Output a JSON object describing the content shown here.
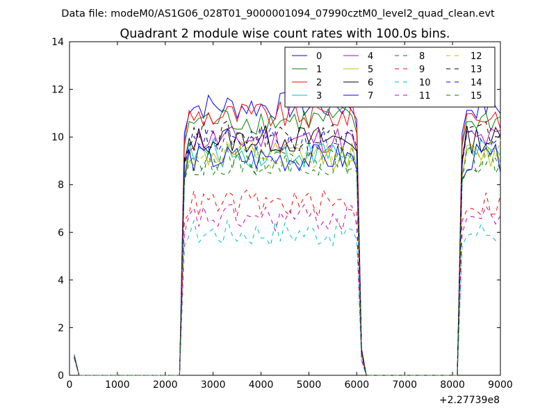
{
  "figure": {
    "suptitle": "Data file: modeM0/AS1G06_028T01_9000001094_07990cztM0_level2_quad_clean.evt",
    "x_offset_label": "+2.27739e8"
  },
  "chart_data": {
    "type": "line",
    "title": "Quadrant 2 module wise count rates with 100.0s bins.",
    "xlabel": "",
    "ylabel": "",
    "xlim": [
      0,
      9000
    ],
    "ylim": [
      0,
      14
    ],
    "xticks": [
      0,
      1000,
      2000,
      3000,
      4000,
      5000,
      6000,
      7000,
      8000,
      9000
    ],
    "yticks": [
      0,
      2,
      4,
      6,
      8,
      10,
      12,
      14
    ],
    "grid": false,
    "legend": {
      "placement": "top-right",
      "columns": 4
    },
    "series": [
      {
        "name": "0",
        "color": "#0000ff",
        "dash": "solid",
        "level": 11.3
      },
      {
        "name": "1",
        "color": "#008000",
        "dash": "solid",
        "level": 10.7
      },
      {
        "name": "2",
        "color": "#ff0000",
        "dash": "solid",
        "level": 10.9
      },
      {
        "name": "3",
        "color": "#00bfbf",
        "dash": "solid",
        "level": 9.3
      },
      {
        "name": "4",
        "color": "#bf00bf",
        "dash": "solid",
        "level": 9.9
      },
      {
        "name": "5",
        "color": "#bfbf00",
        "dash": "solid",
        "level": 9.2
      },
      {
        "name": "6",
        "color": "#000000",
        "dash": "solid",
        "level": 9.9
      },
      {
        "name": "7",
        "color": "#0000ff",
        "dash": "solid",
        "level": 9.1
      },
      {
        "name": "8",
        "color": "#008000",
        "dash": "dashed",
        "level": 9.0
      },
      {
        "name": "9",
        "color": "#ff0000",
        "dash": "dashed",
        "level": 7.2
      },
      {
        "name": "10",
        "color": "#00bfbf",
        "dash": "dashed",
        "level": 6.0
      },
      {
        "name": "11",
        "color": "#bf00bf",
        "dash": "dashed",
        "level": 6.6
      },
      {
        "name": "12",
        "color": "#bfbf00",
        "dash": "dashed",
        "level": 9.3
      },
      {
        "name": "13",
        "color": "#000000",
        "dash": "dashed",
        "level": 10.1
      },
      {
        "name": "14",
        "color": "#0000ff",
        "dash": "dashed",
        "level": 9.8
      },
      {
        "name": "15",
        "color": "#008000",
        "dash": "dashed",
        "level": 9.0
      }
    ],
    "x_bins": [
      100,
      200,
      300,
      400,
      500,
      600,
      700,
      800,
      900,
      1000,
      1100,
      1200,
      1300,
      1400,
      1500,
      1600,
      1700,
      1800,
      1900,
      2000,
      2100,
      2200,
      2300,
      2400,
      2500,
      2600,
      2700,
      2800,
      2900,
      3000,
      3100,
      3200,
      3300,
      3400,
      3500,
      3600,
      3700,
      3800,
      3900,
      4000,
      4100,
      4200,
      4300,
      4400,
      4500,
      4600,
      4700,
      4800,
      4900,
      5000,
      5100,
      5200,
      5300,
      5400,
      5500,
      5600,
      5700,
      5800,
      5900,
      6000,
      6100,
      6200,
      6300,
      6400,
      6500,
      6600,
      6700,
      6800,
      6900,
      7000,
      7100,
      7200,
      7300,
      7400,
      7500,
      7600,
      7700,
      7800,
      7900,
      8000,
      8100,
      8200,
      8300,
      8400,
      8500,
      8600,
      8700,
      8800,
      8900,
      9000
    ],
    "segments": [
      {
        "x_start": 2400,
        "x_end": 6000,
        "note_ramp_at_edges": true
      },
      {
        "x_start": 8200,
        "x_end": 9000,
        "note_ramp_at_edges": true
      }
    ],
    "start_values": {
      "x": 100,
      "y": 0.8
    }
  }
}
